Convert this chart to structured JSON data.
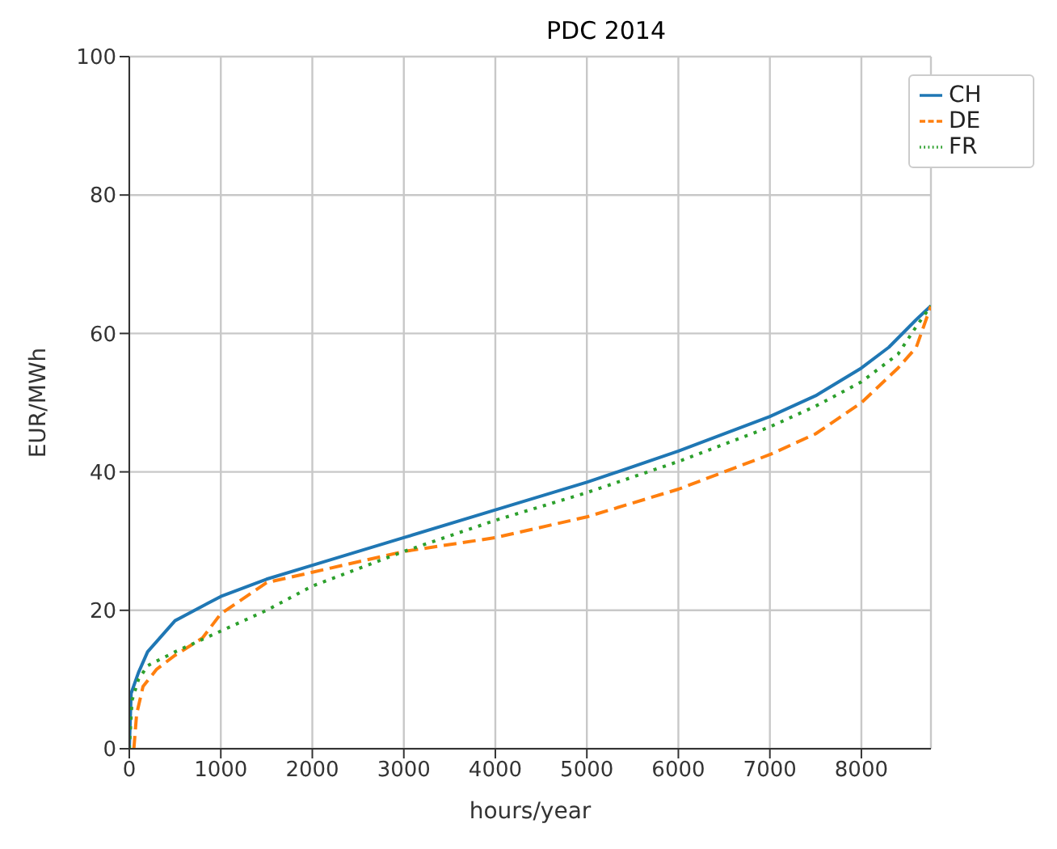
{
  "chart_data": {
    "type": "line",
    "title": "PDC 2014",
    "xlabel": "hours/year",
    "ylabel": "EUR/MWh",
    "xlim": [
      0,
      8760
    ],
    "xticks": [
      0,
      1000,
      2000,
      3000,
      4000,
      5000,
      6000,
      7000,
      8000
    ],
    "ylim": [
      0,
      100
    ],
    "yticks": [
      0,
      20,
      40,
      60,
      80,
      100
    ],
    "grid": true,
    "legend": "top right",
    "marker": "none",
    "series": [
      {
        "name": "CH",
        "color": "#1f77b4",
        "line_style": "solid",
        "x": [
          0,
          20,
          100,
          200,
          500,
          1000,
          1500,
          2000,
          3000,
          4000,
          5000,
          6000,
          7000,
          7500,
          8000,
          8300,
          8600,
          8760
        ],
        "values": [
          0,
          8,
          11,
          14,
          18.5,
          22,
          24.5,
          26.5,
          30.5,
          34.5,
          38.5,
          43,
          48,
          51,
          55,
          58,
          62,
          64
        ]
      },
      {
        "name": "DE",
        "color": "#ff7f0e",
        "line_style": "dashed",
        "x": [
          50,
          80,
          150,
          300,
          500,
          800,
          1000,
          1500,
          2000,
          3000,
          4000,
          5000,
          6000,
          7000,
          7500,
          8000,
          8400,
          8600,
          8760
        ],
        "values": [
          0,
          5,
          9,
          11.5,
          13.5,
          16,
          19.5,
          24,
          25.5,
          28.5,
          30.5,
          33.5,
          37.5,
          42.5,
          45.5,
          50,
          55,
          58,
          64
        ]
      },
      {
        "name": "FR",
        "color": "#2ca02c",
        "line_style": "dotted",
        "x": [
          0,
          30,
          100,
          200,
          500,
          1000,
          1500,
          2000,
          3000,
          4000,
          5000,
          6000,
          7000,
          7500,
          8000,
          8400,
          8600,
          8760
        ],
        "values": [
          0,
          7,
          10,
          12,
          14,
          17,
          20,
          23.5,
          28.5,
          33,
          37,
          41.5,
          46.5,
          49.5,
          53,
          57,
          61,
          64
        ]
      }
    ]
  }
}
